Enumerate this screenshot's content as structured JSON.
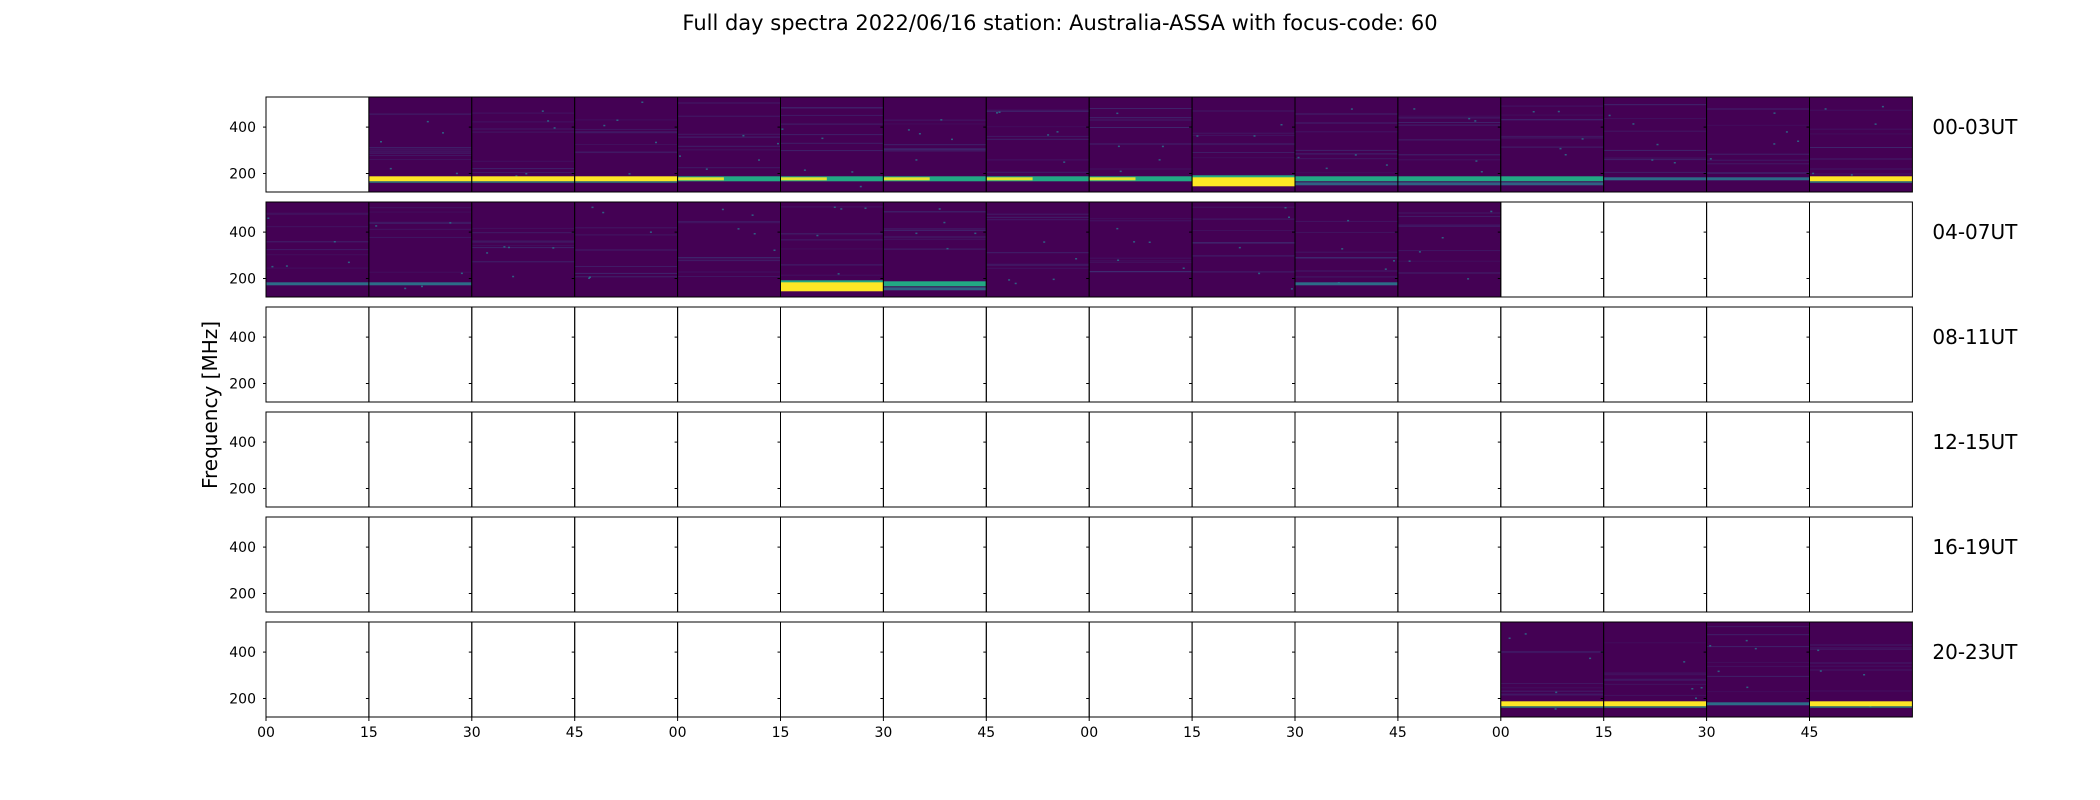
{
  "chart_data": {
    "type": "heatmap",
    "title": "Full day spectra 2022/06/16 station: Australia-ASSA with focus-code: 60",
    "ylabel": "Frequency [MHz]",
    "ylim": [
      120,
      530
    ],
    "y_ticks": [
      "200",
      "400"
    ],
    "y_tick_values": [
      200,
      400
    ],
    "x_tick_labels": [
      "00",
      "15",
      "30",
      "45",
      "00",
      "15",
      "30",
      "45",
      "00",
      "15",
      "30",
      "45",
      "00",
      "15",
      "30",
      "45"
    ],
    "colormap": [
      "#440154",
      "#2a788e",
      "#22a884",
      "#fde725"
    ],
    "rows": [
      {
        "label": "00-03UT",
        "panels": [
          {
            "data": false
          },
          {
            "data": true,
            "band": "bright"
          },
          {
            "data": true,
            "band": "bright"
          },
          {
            "data": true,
            "band": "bright"
          },
          {
            "data": true,
            "band": "mixed"
          },
          {
            "data": true,
            "band": "mixed"
          },
          {
            "data": true,
            "band": "mixed"
          },
          {
            "data": true,
            "band": "mixed"
          },
          {
            "data": true,
            "band": "mixed"
          },
          {
            "data": true,
            "band": "burst"
          },
          {
            "data": true,
            "band": "teal"
          },
          {
            "data": true,
            "band": "teal"
          },
          {
            "data": true,
            "band": "teal"
          },
          {
            "data": true,
            "band": "faint"
          },
          {
            "data": true,
            "band": "faint"
          },
          {
            "data": true,
            "band": "bright"
          }
        ]
      },
      {
        "label": "04-07UT",
        "panels": [
          {
            "data": true,
            "band": "faint"
          },
          {
            "data": true,
            "band": "faint"
          },
          {
            "data": true,
            "band": "none"
          },
          {
            "data": true,
            "band": "none"
          },
          {
            "data": true,
            "band": "none"
          },
          {
            "data": true,
            "band": "burst"
          },
          {
            "data": true,
            "band": "teal"
          },
          {
            "data": true,
            "band": "none"
          },
          {
            "data": true,
            "band": "none"
          },
          {
            "data": true,
            "band": "none"
          },
          {
            "data": true,
            "band": "faint"
          },
          {
            "data": true,
            "band": "none"
          },
          {
            "data": false
          },
          {
            "data": false
          },
          {
            "data": false
          },
          {
            "data": false
          }
        ]
      },
      {
        "label": "08-11UT",
        "panels": []
      },
      {
        "label": "12-15UT",
        "panels": []
      },
      {
        "label": "16-19UT",
        "panels": []
      },
      {
        "label": "20-23UT",
        "panels": [
          {
            "data": false
          },
          {
            "data": false
          },
          {
            "data": false
          },
          {
            "data": false
          },
          {
            "data": false
          },
          {
            "data": false
          },
          {
            "data": false
          },
          {
            "data": false
          },
          {
            "data": false
          },
          {
            "data": false
          },
          {
            "data": false
          },
          {
            "data": false
          },
          {
            "data": true,
            "band": "bright"
          },
          {
            "data": true,
            "band": "bright"
          },
          {
            "data": true,
            "band": "faint"
          },
          {
            "data": true,
            "band": "bright"
          }
        ]
      }
    ]
  }
}
